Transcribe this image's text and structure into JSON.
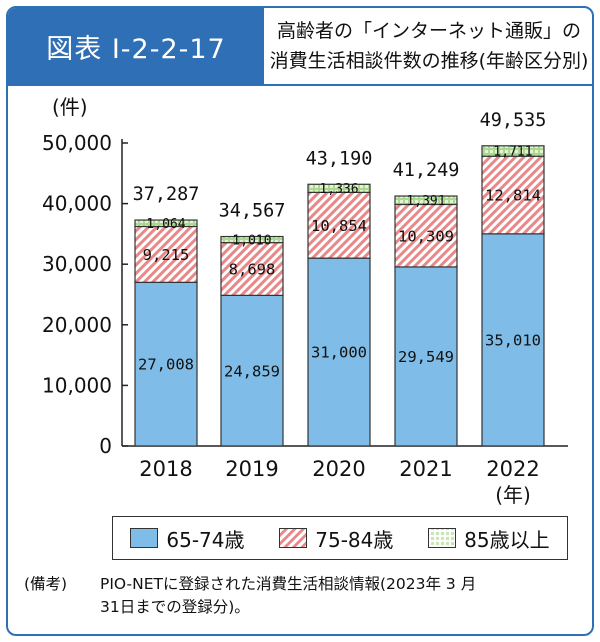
{
  "figure": {
    "label": "図表 I-2-2-17",
    "title_line1": "高齢者の「インターネット通販」の",
    "title_line2": "消費生活相談件数の推移(年齢区分別)"
  },
  "chart_data": {
    "type": "bar",
    "stacked": true,
    "categories": [
      "2018",
      "2019",
      "2020",
      "2021",
      "2022"
    ],
    "series": [
      {
        "name": "65-74歳",
        "values": [
          27008,
          24859,
          31000,
          29549,
          35010
        ],
        "labels": [
          "27,008",
          "24,859",
          "31,000",
          "29,549",
          "35,010"
        ],
        "color": "#7fbde8"
      },
      {
        "name": "75-84歳",
        "values": [
          9215,
          8698,
          10854,
          10309,
          12814
        ],
        "labels": [
          "9,215",
          "8,698",
          "10,854",
          "10,309",
          "12,814"
        ],
        "color": "#e88888"
      },
      {
        "name": "85歳以上",
        "values": [
          1064,
          1010,
          1336,
          1391,
          1711
        ],
        "labels": [
          "1,064",
          "1,010",
          "1,336",
          "1,391",
          "1,711"
        ],
        "color": "#c9e7b5"
      }
    ],
    "totals": [
      "37,287",
      "34,567",
      "43,190",
      "41,249",
      "49,535"
    ],
    "ylabel": "(件)",
    "xlabel": "(年)",
    "ylim": [
      0,
      50000
    ],
    "yticks": [
      "0",
      "10,000",
      "20,000",
      "30,000",
      "40,000",
      "50,000"
    ],
    "grid": false,
    "legend_position": "bottom"
  },
  "note": {
    "key": "(備考)",
    "line1": "PIO-NETに登録された消費生活相談情報(2023年 3 月",
    "line2": "31日までの登録分)。"
  }
}
